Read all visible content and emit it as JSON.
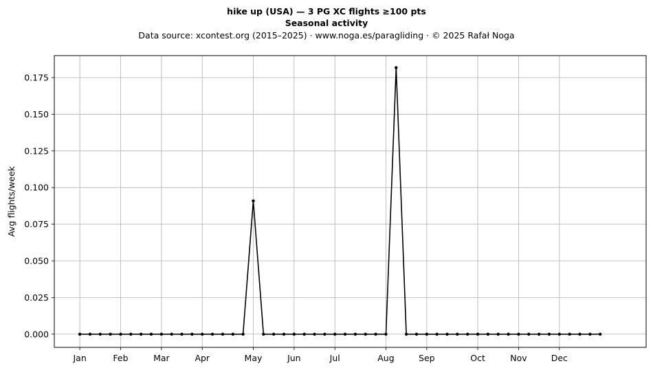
{
  "chart_data": {
    "type": "line",
    "title": "hike up (USA)  —  3 PG XC flights ≥100 pts",
    "subtitle": "Seasonal activity",
    "source_note": "Data source: xcontest.org (2015–2025)  ·  www.noga.es/paragliding  ·  © 2025 Rafał Noga",
    "xlabel": "",
    "ylabel": "Avg flights/week",
    "x_tick_labels": [
      "Jan",
      "Feb",
      "Mar",
      "Apr",
      "May",
      "Jun",
      "Jul",
      "Aug",
      "Sep",
      "Oct",
      "Nov",
      "Dec"
    ],
    "x_tick_weeks": [
      1,
      5,
      9,
      13,
      18,
      22,
      26,
      31,
      35,
      40,
      44,
      48
    ],
    "y_ticks": [
      "0.000",
      "0.025",
      "0.050",
      "0.075",
      "0.100",
      "0.125",
      "0.150",
      "0.175"
    ],
    "ylim": [
      -0.009,
      0.19
    ],
    "xlim": [
      -1.5,
      56.5
    ],
    "grid": true,
    "legend": "none",
    "line_color": "#000000",
    "series": [
      {
        "x": [
          1,
          2,
          3,
          4,
          5,
          6,
          7,
          8,
          9,
          10,
          11,
          12,
          13,
          14,
          15,
          16,
          17,
          18,
          19,
          20,
          21,
          22,
          23,
          24,
          25,
          26,
          27,
          28,
          29,
          30,
          31,
          32,
          33,
          34,
          35,
          36,
          37,
          38,
          39,
          40,
          41,
          42,
          43,
          44,
          45,
          46,
          47,
          48,
          49,
          50,
          51,
          52
        ],
        "values": [
          0,
          0,
          0,
          0,
          0,
          0,
          0,
          0,
          0,
          0,
          0,
          0,
          0,
          0,
          0,
          0,
          0,
          0.0909,
          0,
          0,
          0,
          0,
          0,
          0,
          0,
          0,
          0,
          0,
          0,
          0,
          0,
          0.1818,
          0,
          0,
          0,
          0,
          0,
          0,
          0,
          0,
          0,
          0,
          0,
          0,
          0,
          0,
          0,
          0,
          0,
          0,
          0,
          0
        ]
      }
    ]
  }
}
